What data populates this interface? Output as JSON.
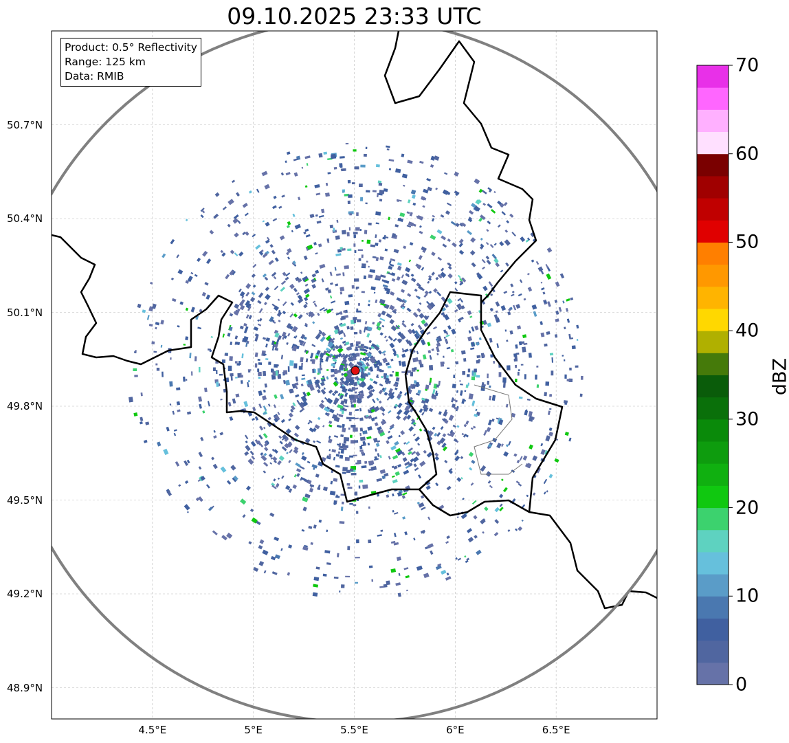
{
  "title": "09.10.2025 23:33 UTC",
  "info_box": [
    "Product: 0.5° Reflectivity",
    "Range: 125 km",
    "Data: RMIB"
  ],
  "map": {
    "lon_range": [
      4.0,
      7.0
    ],
    "lat_range": [
      48.8,
      51.0
    ],
    "x_ticks": [
      {
        "v": 4.5,
        "label": "4.5°E"
      },
      {
        "v": 5.0,
        "label": "5°E"
      },
      {
        "v": 5.5,
        "label": "5.5°E"
      },
      {
        "v": 6.0,
        "label": "6°E"
      },
      {
        "v": 6.5,
        "label": "6.5°E"
      }
    ],
    "y_ticks": [
      {
        "v": 50.7,
        "label": "50.7°N"
      },
      {
        "v": 50.4,
        "label": "50.4°N"
      },
      {
        "v": 50.1,
        "label": "50.1°N"
      },
      {
        "v": 49.8,
        "label": "49.8°N"
      },
      {
        "v": 49.5,
        "label": "49.5°N"
      },
      {
        "v": 49.2,
        "label": "49.2°N"
      },
      {
        "v": 48.9,
        "label": "48.9°N"
      }
    ],
    "radar_site": {
      "lon": 5.505,
      "lat": 49.914,
      "color": "#e01010"
    },
    "range_km": 125,
    "range_ring_color": "#808080"
  },
  "colorbar": {
    "label": "dBZ",
    "min": 0,
    "max": 70,
    "step": 2.5,
    "ticks": [
      "0",
      "10",
      "20",
      "30",
      "40",
      "50",
      "60",
      "70"
    ],
    "colors": [
      "#6672a8",
      "#5066a0",
      "#4060a0",
      "#4a78b0",
      "#5a9cc8",
      "#66c0dc",
      "#5ed2c0",
      "#3cd26e",
      "#10c810",
      "#10b010",
      "#0e9c0e",
      "#0a8a0a",
      "#0a700a",
      "#0a5c0a",
      "#457a0a",
      "#b0b000",
      "#ffd800",
      "#ffb400",
      "#ff9800",
      "#ff7f00",
      "#e00000",
      "#c00000",
      "#a00000",
      "#7a0000",
      "#ffe0ff",
      "#ffb0ff",
      "#ff66ff",
      "#e830e8"
    ]
  }
}
